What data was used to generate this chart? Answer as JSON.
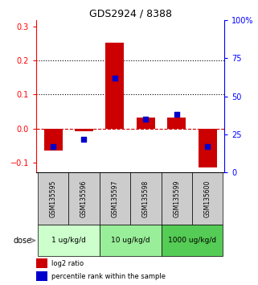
{
  "title": "GDS2924 / 8388",
  "samples": [
    "GSM135595",
    "GSM135596",
    "GSM135597",
    "GSM135598",
    "GSM135599",
    "GSM135600"
  ],
  "log2_ratio": [
    -0.065,
    -0.008,
    0.252,
    0.033,
    0.033,
    -0.115
  ],
  "percentile_rank": [
    17,
    22,
    62,
    35,
    38,
    17
  ],
  "bar_color": "#cc0000",
  "dot_color": "#0000cc",
  "ylim_left": [
    -0.13,
    0.32
  ],
  "ylim_right": [
    0,
    100
  ],
  "yticks_left": [
    -0.1,
    0.0,
    0.1,
    0.2,
    0.3
  ],
  "yticks_right": [
    0,
    25,
    50,
    75,
    100
  ],
  "ytick_right_labels": [
    "0",
    "25",
    "50",
    "75",
    "100%"
  ],
  "hlines": [
    0.1,
    0.2
  ],
  "zero_line_color": "#cc0000",
  "dose_groups": [
    {
      "label": "1 ug/kg/d",
      "start": 0,
      "end": 1,
      "color": "#ccffcc"
    },
    {
      "label": "10 ug/kg/d",
      "start": 2,
      "end": 3,
      "color": "#99ee99"
    },
    {
      "label": "1000 ug/kg/d",
      "start": 4,
      "end": 5,
      "color": "#55cc55"
    }
  ],
  "legend_red_label": "log2 ratio",
  "legend_blue_label": "percentile rank within the sample",
  "dose_label": "dose",
  "gsm_bg_color": "#cccccc",
  "bar_width": 0.6
}
